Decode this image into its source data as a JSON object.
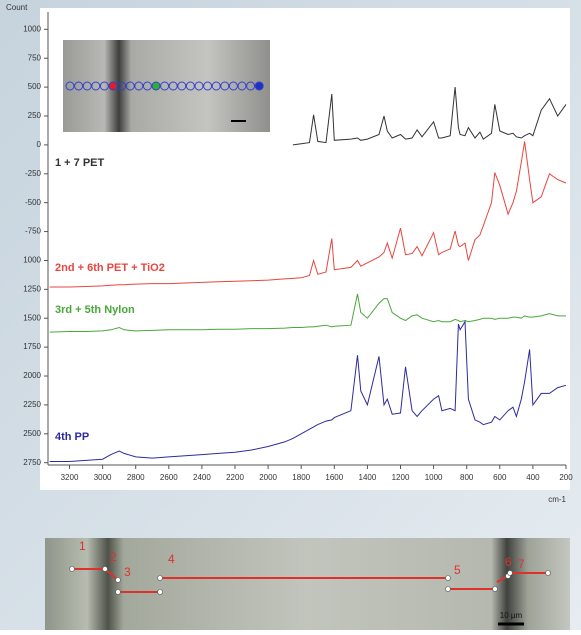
{
  "chart_data": {
    "type": "line",
    "y_axis_label": "Count",
    "x_axis_label": "cm-1",
    "xlim": [
      3330,
      200
    ],
    "ylim": [
      -2770,
      1150
    ],
    "xticks": [
      3200,
      3000,
      2800,
      2600,
      2400,
      2200,
      2000,
      1800,
      1600,
      1400,
      1200,
      1000,
      800,
      600,
      400,
      200
    ],
    "yticks": [
      1000,
      750,
      500,
      250,
      0,
      -250,
      -500,
      -750,
      {
        "value": -1000,
        "label": "1000"
      },
      {
        "value": -1250,
        "label": "1250"
      },
      {
        "value": -1500,
        "label": "1500"
      },
      {
        "value": -1750,
        "label": "1750"
      },
      {
        "value": -2000,
        "label": "2000"
      },
      {
        "value": -2250,
        "label": "2250"
      },
      {
        "value": -2500,
        "label": "2500"
      },
      {
        "value": -2750,
        "label": "2750"
      }
    ],
    "x": [
      3320,
      3200,
      3100,
      3000,
      2950,
      2900,
      2870,
      2800,
      2700,
      2600,
      2500,
      2400,
      2300,
      2200,
      2100,
      2000,
      1900,
      1850,
      1800,
      1750,
      1725,
      1700,
      1650,
      1615,
      1600,
      1500,
      1460,
      1440,
      1400,
      1330,
      1300,
      1280,
      1250,
      1200,
      1170,
      1130,
      1100,
      1070,
      1000,
      970,
      950,
      900,
      870,
      850,
      840,
      810,
      790,
      750,
      720,
      700,
      650,
      630,
      600,
      550,
      520,
      500,
      470,
      450,
      420,
      400,
      350,
      300,
      250,
      200
    ],
    "series": [
      {
        "name": "1 + 7 PET",
        "color": "#333333",
        "values": [
          null,
          null,
          null,
          null,
          null,
          null,
          null,
          null,
          null,
          null,
          null,
          null,
          null,
          null,
          null,
          null,
          null,
          0,
          10,
          20,
          260,
          30,
          20,
          440,
          40,
          50,
          60,
          40,
          50,
          90,
          250,
          120,
          60,
          90,
          50,
          60,
          130,
          70,
          200,
          60,
          60,
          80,
          500,
          150,
          90,
          80,
          150,
          60,
          110,
          50,
          100,
          350,
          120,
          90,
          100,
          70,
          60,
          80,
          100,
          80,
          300,
          400,
          250,
          350
        ]
      },
      {
        "name": "2nd + 6th PET + TiO2",
        "color": "#e8463f",
        "values": [
          -1230,
          -1230,
          -1225,
          -1220,
          -1215,
          -1210,
          -1210,
          -1205,
          -1200,
          -1200,
          -1195,
          -1190,
          -1185,
          -1180,
          -1175,
          -1170,
          -1160,
          -1155,
          -1150,
          -1130,
          -1000,
          -1120,
          -1100,
          -810,
          -1080,
          -1060,
          -1000,
          -1050,
          -1020,
          -970,
          -930,
          -850,
          -980,
          -720,
          -950,
          -940,
          -880,
          -960,
          -760,
          -950,
          -930,
          -900,
          -745,
          -870,
          -880,
          -850,
          -1000,
          -820,
          -780,
          -700,
          -500,
          -240,
          -350,
          -600,
          -500,
          -400,
          -150,
          30,
          -300,
          -500,
          -450,
          -250,
          -300,
          -330
        ]
      },
      {
        "name": "3rd + 5th Nylon",
        "color": "#4aa83a",
        "values": [
          -1620,
          -1615,
          -1615,
          -1610,
          -1600,
          -1580,
          -1600,
          -1610,
          -1605,
          -1600,
          -1600,
          -1600,
          -1595,
          -1595,
          -1590,
          -1590,
          -1585,
          -1580,
          -1580,
          -1575,
          -1575,
          -1570,
          -1560,
          -1575,
          -1570,
          -1560,
          -1290,
          -1450,
          -1500,
          -1370,
          -1330,
          -1330,
          -1450,
          -1500,
          -1520,
          -1480,
          -1470,
          -1500,
          -1530,
          -1520,
          -1530,
          -1530,
          -1510,
          -1520,
          -1530,
          -1520,
          -1530,
          -1520,
          -1510,
          -1500,
          -1500,
          -1510,
          -1500,
          -1500,
          -1490,
          -1490,
          -1500,
          -1480,
          -1490,
          -1490,
          -1480,
          -1460,
          -1480,
          -1480
        ]
      },
      {
        "name": "4th PP",
        "color": "#2e2b9c",
        "values": [
          -2740,
          -2740,
          -2730,
          -2720,
          -2680,
          -2650,
          -2670,
          -2700,
          -2710,
          -2700,
          -2690,
          -2680,
          -2670,
          -2660,
          -2640,
          -2610,
          -2570,
          -2540,
          -2500,
          -2460,
          -2440,
          -2420,
          -2390,
          -2380,
          -2360,
          -2300,
          -1820,
          -2130,
          -2250,
          -1830,
          -2250,
          -2200,
          -2330,
          -2320,
          -1920,
          -2300,
          -2350,
          -2300,
          -2200,
          -2170,
          -2300,
          -2280,
          -2300,
          -1550,
          -1600,
          -1530,
          -2200,
          -2380,
          -2400,
          -2420,
          -2400,
          -2350,
          -2380,
          -2300,
          -2270,
          -2350,
          -2200,
          -2050,
          -1770,
          -2250,
          -2150,
          -2150,
          -2100,
          -2080
        ]
      }
    ]
  },
  "bottom_image": {
    "labels": [
      "1",
      "2",
      "3",
      "4",
      "5",
      "6",
      "7"
    ],
    "scale_label": "10 µm"
  }
}
